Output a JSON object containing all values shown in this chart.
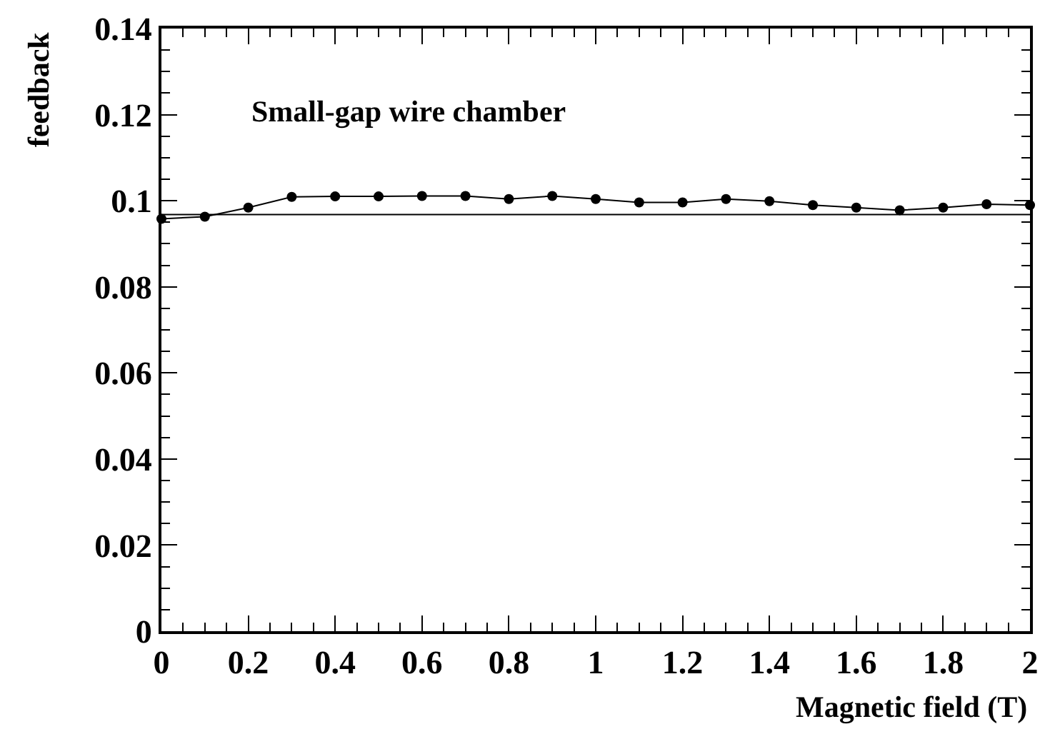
{
  "chart_data": {
    "type": "line",
    "xlabel": "Magnetic field (T)",
    "ylabel": "feedback",
    "annotations": [
      "Small-gap wire chamber"
    ],
    "x": [
      0,
      0.1,
      0.2,
      0.3,
      0.4,
      0.5,
      0.6,
      0.7,
      0.8,
      0.9,
      1.0,
      1.1,
      1.2,
      1.3,
      1.4,
      1.5,
      1.6,
      1.7,
      1.8,
      1.9,
      2.0
    ],
    "series": [
      {
        "color": "#000000",
        "values": [
          0.0958,
          0.0963,
          0.0984,
          0.1009,
          0.101,
          0.101,
          0.1011,
          0.1011,
          0.1004,
          0.1011,
          0.1004,
          0.0996,
          0.0996,
          0.1004,
          0.0999,
          0.099,
          0.0984,
          0.0978,
          0.0984,
          0.0992,
          0.099
        ]
      }
    ],
    "ref_lines": [
      {
        "axis": "y",
        "value": 0.0968,
        "color": "#000000",
        "line_style": "solid"
      }
    ],
    "marker": "circle",
    "line_style": "solid",
    "xlim": [
      0,
      2
    ],
    "xticks": [
      0,
      {
        "value": 0.05,
        "label": null
      },
      {
        "value": 0.1,
        "label": null
      },
      {
        "value": 0.15,
        "label": null
      },
      0.2,
      {
        "value": 0.25,
        "label": null
      },
      {
        "value": 0.3,
        "label": null
      },
      {
        "value": 0.35,
        "label": null
      },
      0.4,
      {
        "value": 0.45,
        "label": null
      },
      {
        "value": 0.5,
        "label": null
      },
      {
        "value": 0.55,
        "label": null
      },
      0.6,
      {
        "value": 0.65,
        "label": null
      },
      {
        "value": 0.7,
        "label": null
      },
      {
        "value": 0.75,
        "label": null
      },
      0.8,
      {
        "value": 0.85,
        "label": null
      },
      {
        "value": 0.9,
        "label": null
      },
      {
        "value": 0.95,
        "label": null
      },
      1,
      {
        "value": 1.05,
        "label": null
      },
      {
        "value": 1.1,
        "label": null
      },
      {
        "value": 1.15,
        "label": null
      },
      1.2,
      {
        "value": 1.25,
        "label": null
      },
      {
        "value": 1.3,
        "label": null
      },
      {
        "value": 1.35,
        "label": null
      },
      1.4,
      {
        "value": 1.45,
        "label": null
      },
      {
        "value": 1.5,
        "label": null
      },
      {
        "value": 1.55,
        "label": null
      },
      1.6,
      {
        "value": 1.65,
        "label": null
      },
      {
        "value": 1.7,
        "label": null
      },
      {
        "value": 1.75,
        "label": null
      },
      1.8,
      {
        "value": 1.85,
        "label": null
      },
      {
        "value": 1.9,
        "label": null
      },
      {
        "value": 1.95,
        "label": null
      },
      2
    ],
    "ylim": [
      0,
      0.14
    ],
    "yticks": [
      0,
      {
        "value": 0.005,
        "label": null
      },
      {
        "value": 0.01,
        "label": null
      },
      {
        "value": 0.015,
        "label": null
      },
      0.02,
      {
        "value": 0.025,
        "label": null
      },
      {
        "value": 0.03,
        "label": null
      },
      {
        "value": 0.035,
        "label": null
      },
      0.04,
      {
        "value": 0.045,
        "label": null
      },
      {
        "value": 0.05,
        "label": null
      },
      {
        "value": 0.055,
        "label": null
      },
      0.06,
      {
        "value": 0.065,
        "label": null
      },
      {
        "value": 0.07,
        "label": null
      },
      {
        "value": 0.075,
        "label": null
      },
      0.08,
      {
        "value": 0.085,
        "label": null
      },
      {
        "value": 0.09,
        "label": null
      },
      {
        "value": 0.095,
        "label": null
      },
      0.1,
      {
        "value": 0.105,
        "label": null
      },
      {
        "value": 0.11,
        "label": null
      },
      {
        "value": 0.115,
        "label": null
      },
      0.12,
      {
        "value": 0.125,
        "label": null
      },
      {
        "value": 0.13,
        "label": null
      },
      {
        "value": 0.135,
        "label": null
      },
      0.14
    ]
  }
}
